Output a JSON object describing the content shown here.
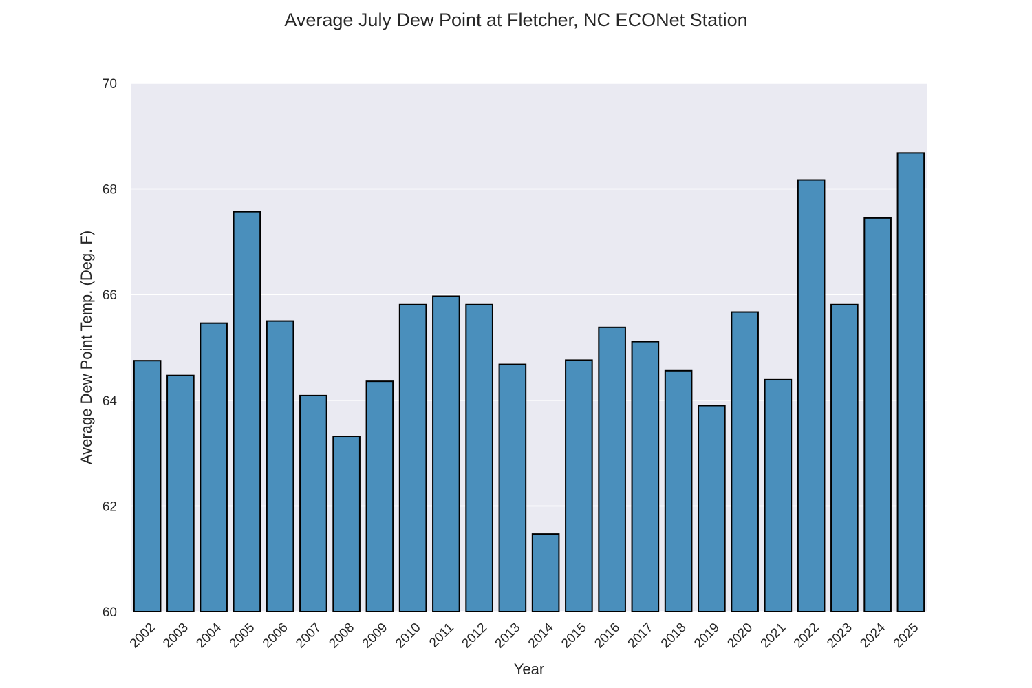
{
  "chart_data": {
    "type": "bar",
    "title": "Average July Dew Point at Fletcher, NC ECONet Station",
    "xlabel": "Year",
    "ylabel": "Average Dew Point Temp. (Deg. F)",
    "categories": [
      "2002",
      "2003",
      "2004",
      "2005",
      "2006",
      "2007",
      "2008",
      "2009",
      "2010",
      "2011",
      "2012",
      "2013",
      "2014",
      "2015",
      "2016",
      "2017",
      "2018",
      "2019",
      "2020",
      "2021",
      "2022",
      "2023",
      "2024",
      "2025"
    ],
    "values": [
      64.75,
      64.47,
      65.46,
      67.57,
      65.5,
      64.09,
      63.32,
      64.36,
      65.81,
      65.97,
      65.81,
      64.68,
      61.47,
      64.76,
      65.38,
      65.11,
      64.56,
      63.9,
      65.67,
      64.39,
      68.17,
      65.81,
      67.45,
      68.68
    ],
    "ylim": [
      60,
      70
    ],
    "yticks": [
      60,
      62,
      64,
      66,
      68,
      70
    ],
    "grid": true,
    "colors": {
      "bar": "#4a8fbc",
      "edge": "#000000",
      "plot_background": "#eaeaf2",
      "grid": "#ffffff"
    }
  }
}
